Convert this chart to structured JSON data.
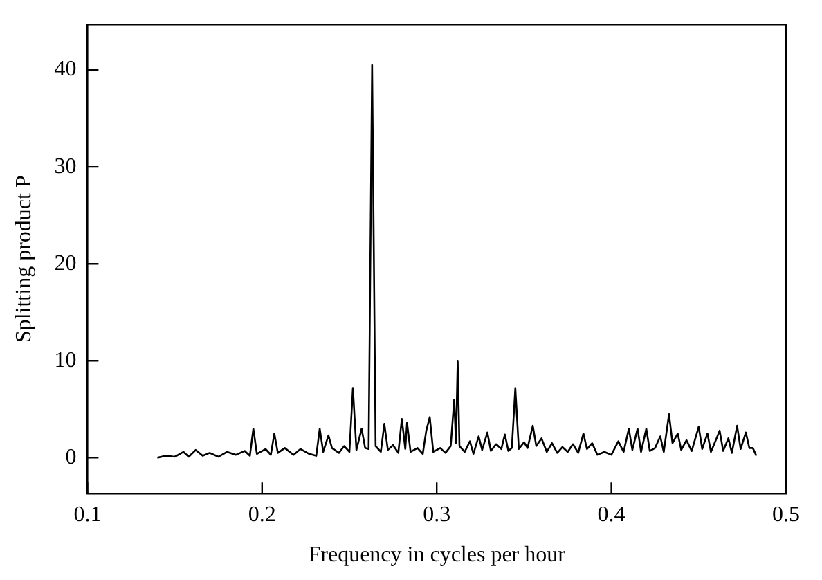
{
  "chart_data": {
    "type": "line",
    "xlabel": "Frequency in cycles per hour",
    "ylabel": "Splitting product P",
    "xlim": [
      0.1,
      0.5
    ],
    "xticks": [
      0.1,
      0.2,
      0.3,
      0.4,
      0.5
    ],
    "ylim": [
      -3.7,
      44.7
    ],
    "yticks": [
      0,
      10,
      20,
      30,
      40
    ],
    "grid": false,
    "legend": false,
    "marker": "none",
    "line_style": "solid",
    "series": [
      {
        "color": "#000000",
        "x": [
          0.14,
          0.145,
          0.15,
          0.155,
          0.158,
          0.162,
          0.166,
          0.17,
          0.175,
          0.18,
          0.185,
          0.19,
          0.193,
          0.195,
          0.197,
          0.202,
          0.205,
          0.207,
          0.209,
          0.213,
          0.218,
          0.222,
          0.227,
          0.231,
          0.233,
          0.235,
          0.238,
          0.24,
          0.244,
          0.247,
          0.25,
          0.252,
          0.254,
          0.257,
          0.259,
          0.261,
          0.263,
          0.265,
          0.268,
          0.27,
          0.272,
          0.275,
          0.278,
          0.28,
          0.282,
          0.283,
          0.285,
          0.289,
          0.292,
          0.294,
          0.296,
          0.298,
          0.302,
          0.305,
          0.308,
          0.31,
          0.311,
          0.312,
          0.313,
          0.316,
          0.319,
          0.321,
          0.324,
          0.326,
          0.329,
          0.331,
          0.334,
          0.337,
          0.339,
          0.341,
          0.343,
          0.345,
          0.347,
          0.35,
          0.352,
          0.355,
          0.357,
          0.36,
          0.363,
          0.366,
          0.369,
          0.372,
          0.375,
          0.378,
          0.381,
          0.384,
          0.386,
          0.389,
          0.392,
          0.396,
          0.4,
          0.404,
          0.407,
          0.41,
          0.412,
          0.415,
          0.417,
          0.42,
          0.422,
          0.425,
          0.428,
          0.43,
          0.433,
          0.435,
          0.438,
          0.44,
          0.443,
          0.446,
          0.45,
          0.452,
          0.455,
          0.457,
          0.46,
          0.462,
          0.464,
          0.467,
          0.469,
          0.472,
          0.474,
          0.477,
          0.479,
          0.481,
          0.483
        ],
        "values": [
          0,
          0.2,
          0.1,
          0.6,
          0.1,
          0.8,
          0.2,
          0.5,
          0.1,
          0.6,
          0.3,
          0.7,
          0.2,
          3.0,
          0.4,
          0.9,
          0.3,
          2.5,
          0.5,
          1.0,
          0.3,
          0.9,
          0.4,
          0.2,
          3.0,
          0.6,
          2.3,
          1.0,
          0.5,
          1.2,
          0.6,
          7.2,
          0.8,
          3.0,
          1.0,
          0.9,
          40.5,
          1.2,
          0.6,
          3.5,
          0.8,
          1.3,
          0.5,
          4.0,
          0.9,
          3.6,
          0.6,
          1.0,
          0.4,
          2.8,
          4.2,
          0.6,
          1.0,
          0.5,
          1.2,
          6.0,
          1.5,
          10.0,
          1.2,
          0.6,
          1.7,
          0.4,
          2.2,
          0.8,
          2.6,
          0.7,
          1.4,
          0.9,
          2.4,
          0.7,
          1.0,
          7.2,
          0.9,
          1.6,
          1.0,
          3.3,
          1.2,
          2.0,
          0.6,
          1.5,
          0.5,
          1.1,
          0.6,
          1.4,
          0.5,
          2.5,
          0.9,
          1.5,
          0.3,
          0.6,
          0.3,
          1.7,
          0.6,
          3.0,
          0.8,
          3.0,
          0.6,
          3.0,
          0.7,
          1.0,
          2.2,
          0.6,
          4.5,
          1.5,
          2.5,
          0.8,
          1.8,
          0.7,
          3.2,
          0.9,
          2.5,
          0.6,
          1.9,
          2.8,
          0.7,
          2.0,
          0.5,
          3.3,
          0.9,
          2.6,
          1.0,
          1.0,
          0.2
        ]
      }
    ]
  }
}
